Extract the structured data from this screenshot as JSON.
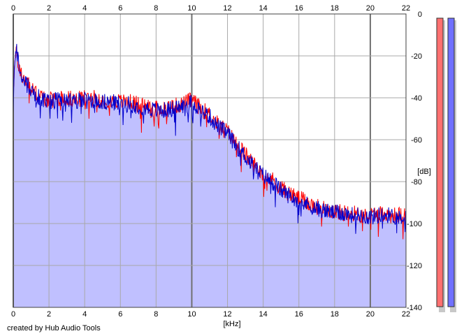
{
  "chart_data": {
    "type": "area",
    "xlabel": "[kHz]",
    "ylabel": "[dB]",
    "xlim": [
      0,
      22
    ],
    "ylim": [
      -140,
      0
    ],
    "x_ticks": [
      0,
      2,
      4,
      6,
      8,
      10,
      12,
      14,
      16,
      18,
      20,
      22
    ],
    "y_ticks": [
      0,
      -20,
      -40,
      -60,
      -80,
      -100,
      -120,
      -140
    ],
    "x_tick_labels": [
      "0",
      "2",
      "4",
      "6",
      "8",
      "10",
      "12",
      "14",
      "16",
      "18",
      "20",
      "22"
    ],
    "y_tick_labels": [
      "0",
      "-20",
      "-40",
      "-60",
      "-80",
      "-100",
      "-120",
      "-140"
    ],
    "grid": true,
    "fill_color": "#c0c0ff",
    "series": [
      {
        "color": "#ff0000",
        "x": [
          0,
          0.1,
          0.2,
          0.3,
          0.5,
          0.8,
          1.0,
          1.3,
          1.6,
          2.0,
          2.5,
          3.0,
          3.5,
          4.0,
          4.5,
          5.0,
          5.5,
          6.0,
          6.5,
          7.0,
          7.5,
          8.0,
          8.5,
          9.0,
          9.5,
          10.0,
          10.5,
          11.0,
          11.5,
          12.0,
          12.5,
          13.0,
          13.5,
          14.0,
          14.5,
          15.0,
          15.5,
          16.0,
          16.5,
          17.0,
          17.5,
          18.0,
          18.5,
          19.0,
          19.5,
          20.0,
          20.5,
          21.0,
          21.5,
          22.0
        ],
        "y": [
          -35,
          -22,
          -18,
          -25,
          -30,
          -33,
          -36,
          -38,
          -40,
          -41,
          -40,
          -40,
          -41,
          -40,
          -40,
          -41,
          -41,
          -42,
          -42,
          -43,
          -44,
          -45,
          -45,
          -44,
          -43,
          -41,
          -45,
          -48,
          -53,
          -56,
          -62,
          -67,
          -72,
          -76,
          -79,
          -83,
          -86,
          -88,
          -90,
          -92,
          -93,
          -94,
          -95,
          -95,
          -96,
          -96,
          -95,
          -96,
          -96,
          -96
        ]
      },
      {
        "color": "#0000cc",
        "x": [
          0,
          0.1,
          0.2,
          0.3,
          0.5,
          0.8,
          1.0,
          1.3,
          1.6,
          2.0,
          2.5,
          3.0,
          3.5,
          4.0,
          4.5,
          5.0,
          5.5,
          6.0,
          6.5,
          7.0,
          7.5,
          8.0,
          8.5,
          9.0,
          9.5,
          10.0,
          10.5,
          11.0,
          11.5,
          12.0,
          12.5,
          13.0,
          13.5,
          14.0,
          14.5,
          15.0,
          15.5,
          16.0,
          16.5,
          17.0,
          17.5,
          18.0,
          18.5,
          19.0,
          19.5,
          20.0,
          20.5,
          21.0,
          21.5,
          22.0
        ],
        "y": [
          -40,
          -22,
          -17,
          -24,
          -31,
          -34,
          -37,
          -39,
          -41,
          -42,
          -41,
          -41,
          -42,
          -41,
          -41,
          -42,
          -42,
          -43,
          -43,
          -44,
          -45,
          -46,
          -46,
          -45,
          -44,
          -42,
          -46,
          -49,
          -54,
          -57,
          -63,
          -68,
          -73,
          -77,
          -80,
          -84,
          -87,
          -89,
          -91,
          -93,
          -94,
          -95,
          -95,
          -96,
          -96,
          -97,
          -96,
          -96,
          -97,
          -97
        ]
      }
    ]
  },
  "meters": [
    {
      "color": "#ff7070"
    },
    {
      "color": "#7070ff"
    }
  ],
  "footer": {
    "credit": "created by Hub Audio Tools"
  }
}
